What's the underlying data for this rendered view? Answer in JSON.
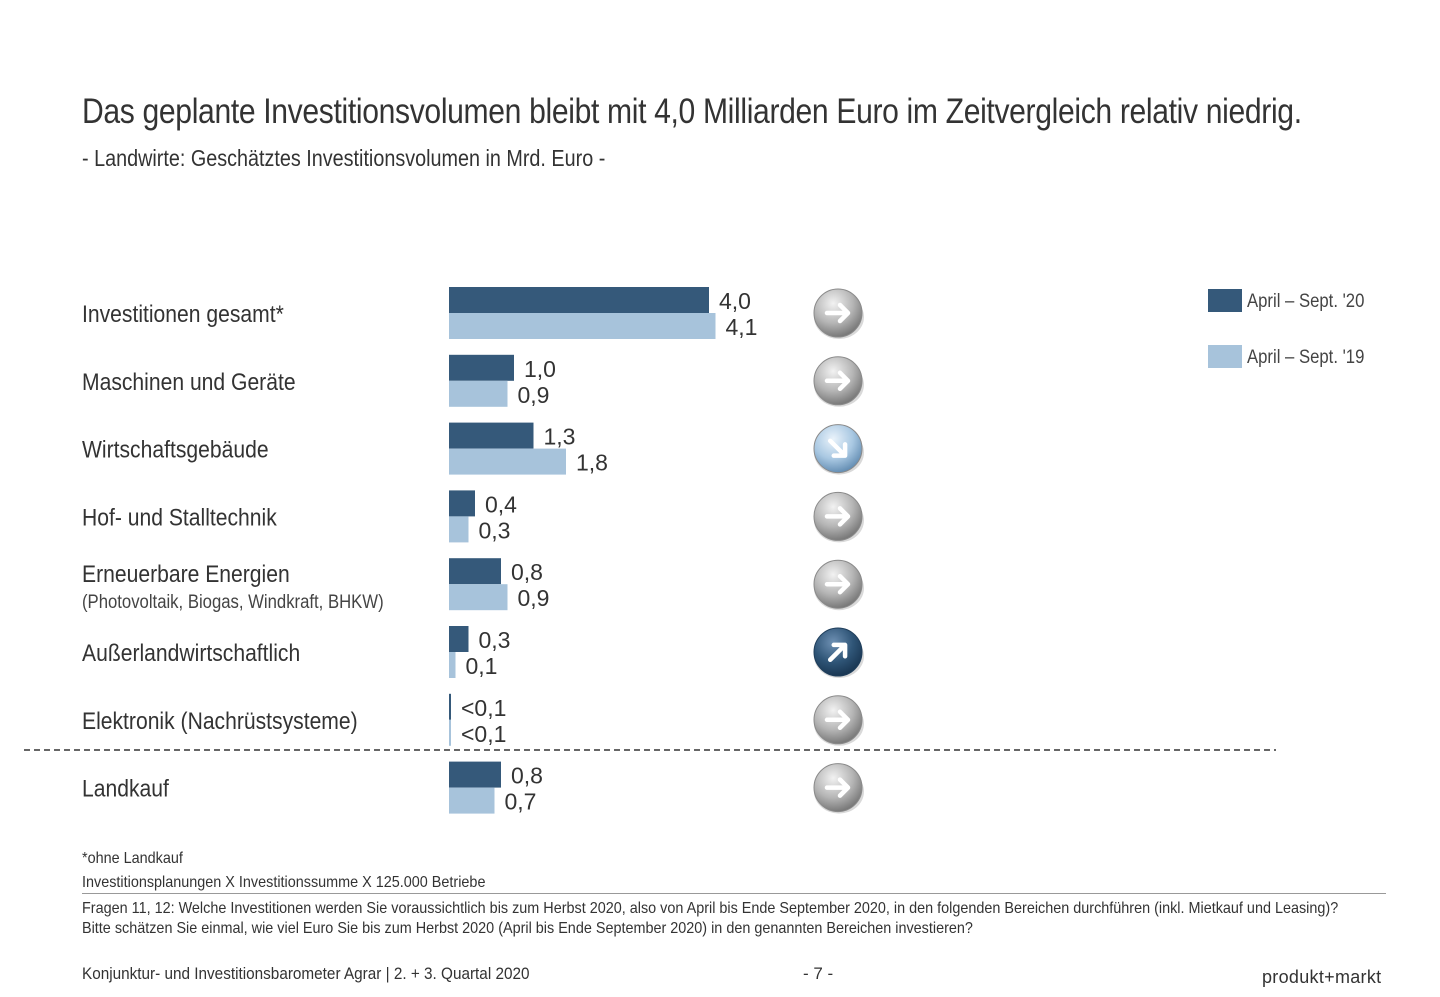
{
  "title": "Das geplante Investitionsvolumen bleibt mit 4,0 Milliarden Euro im Zeitvergleich relativ niedrig.",
  "subtitle": "- Landwirte: Geschätztes Investitionsvolumen in Mrd. Euro -",
  "chart_data": {
    "type": "bar",
    "orientation": "horizontal",
    "categories": [
      "Investitionen gesamt*",
      "Maschinen und Geräte",
      "Wirtschaftsgebäude",
      "Hof- und Stalltechnik",
      "Erneuerbare Energien",
      "Außerlandwirtschaftlich",
      "Elektronik (Nachrüstsysteme)",
      "Landkauf"
    ],
    "category_sublabels": [
      "",
      "",
      "",
      "",
      "(Photovoltaik, Biogas, Windkraft, BHKW)",
      "",
      "",
      ""
    ],
    "series": [
      {
        "name": "April – Sept. '20",
        "color": "#35597a",
        "values": [
          4.0,
          1.0,
          1.3,
          0.4,
          0.8,
          0.3,
          0.03,
          0.8
        ],
        "labels": [
          "4,0",
          "1,0",
          "1,3",
          "0,4",
          "0,8",
          "0,3",
          "<0,1",
          "0,8"
        ]
      },
      {
        "name": "April – Sept. '19",
        "color": "#a7c3db",
        "values": [
          4.1,
          0.9,
          1.8,
          0.3,
          0.9,
          0.1,
          0.03,
          0.7
        ],
        "labels": [
          "4,1",
          "0,9",
          "1,8",
          "0,3",
          "0,9",
          "0,1",
          "<0,1",
          "0,7"
        ]
      }
    ],
    "trend_arrows": [
      "right",
      "right",
      "down-right",
      "right",
      "right",
      "up-right",
      "right",
      "right"
    ],
    "trend_styles": [
      "grey",
      "grey",
      "light-blue",
      "grey",
      "grey",
      "dark-blue",
      "grey",
      "grey"
    ],
    "separator_before_category": "Landkauf",
    "legend_position": "top-right",
    "grid": false,
    "xlim": [
      0,
      4.1
    ]
  },
  "footnotes": {
    "note1": "*ohne Landkauf",
    "note2": "Investitionsplanungen X Investitionssumme X 125.000 Betriebe",
    "question": "Fragen 11, 12: Welche Investitionen werden Sie voraussichtlich bis zum Herbst 2020, also von April bis Ende September 2020, in den folgenden Bereichen durchführen (inkl. Mietkauf und Leasing)? Bitte schätzen Sie einmal, wie viel Euro Sie bis zum Herbst 2020 (April bis Ende September 2020) in den genannten Bereichen investieren?"
  },
  "footer": {
    "left": "Konjunktur- und Investitionsbarometer Agrar | 2. + 3. Quartal 2020",
    "page": "- 7 -",
    "brand": "produkt+markt"
  }
}
